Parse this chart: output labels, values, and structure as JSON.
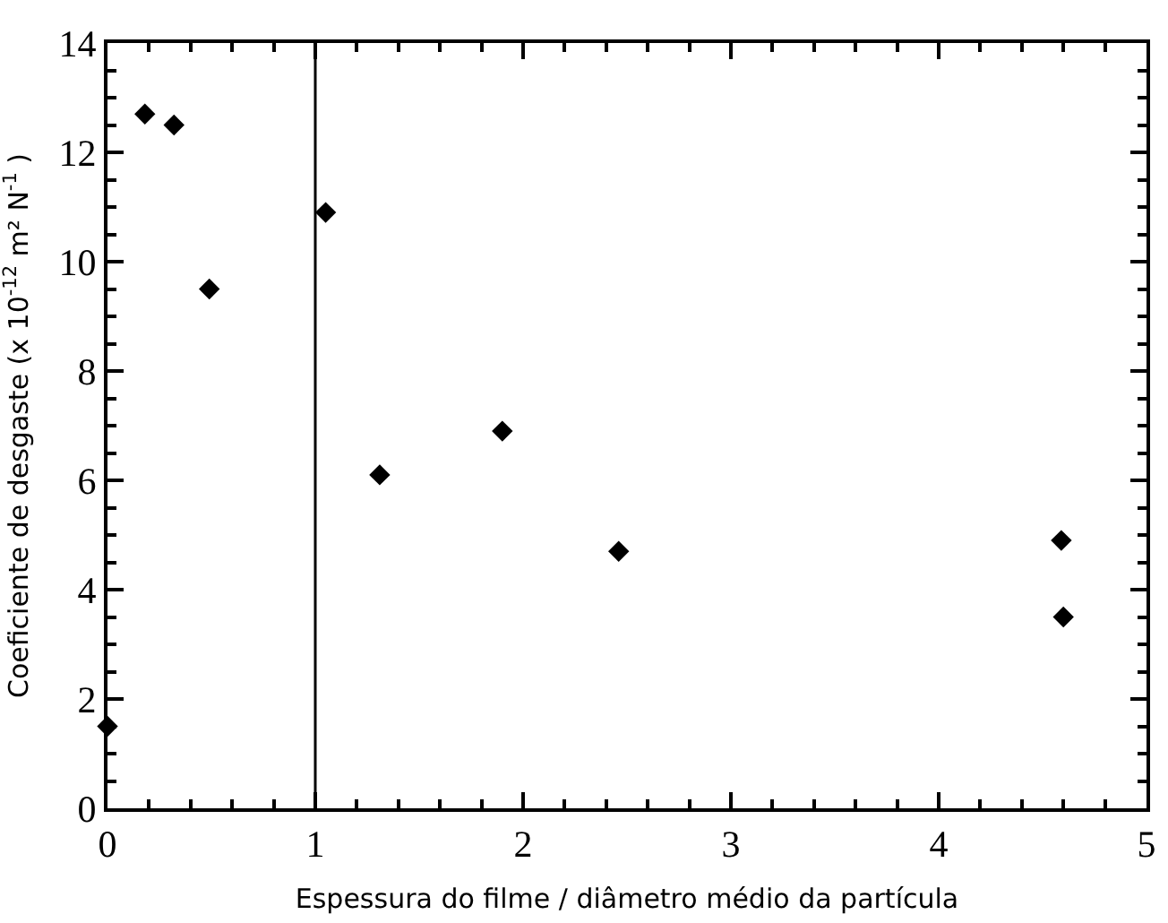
{
  "chart_data": {
    "type": "scatter",
    "xlabel": "Espessura do filme / diâmetro médio da partícula",
    "ylabel": "Coeficiente de desgaste (x 10$^{-12}$ m² N$^{-1}$ )",
    "x": [
      0,
      0.18,
      0.32,
      0.49,
      1.05,
      1.31,
      1.9,
      2.46,
      4.59,
      4.6
    ],
    "series": [
      {
        "color": "#000000",
        "values": [
          1.5,
          12.7,
          12.5,
          9.5,
          10.9,
          6.1,
          6.9,
          4.7,
          4.9,
          3.5
        ]
      }
    ],
    "marker": "diamond",
    "xlim": [
      0,
      5
    ],
    "ylim": [
      0,
      14
    ],
    "xticks": [
      0,
      {
        "value": 0.2,
        "label": null
      },
      {
        "value": 0.4,
        "label": null
      },
      {
        "value": 0.6,
        "label": null
      },
      {
        "value": 0.8,
        "label": null
      },
      1,
      {
        "value": 1.2,
        "label": null
      },
      {
        "value": 1.4,
        "label": null
      },
      {
        "value": 1.6,
        "label": null
      },
      {
        "value": 1.8,
        "label": null
      },
      2,
      {
        "value": 2.2,
        "label": null
      },
      {
        "value": 2.4,
        "label": null
      },
      {
        "value": 2.6,
        "label": null
      },
      {
        "value": 2.8,
        "label": null
      },
      3,
      {
        "value": 3.2,
        "label": null
      },
      {
        "value": 3.4,
        "label": null
      },
      {
        "value": 3.6,
        "label": null
      },
      {
        "value": 3.8,
        "label": null
      },
      4,
      {
        "value": 4.2,
        "label": null
      },
      {
        "value": 4.4,
        "label": null
      },
      {
        "value": 4.6,
        "label": null
      },
      {
        "value": 4.8,
        "label": null
      },
      5
    ],
    "yticks": [
      0,
      {
        "value": 0.5,
        "label": null
      },
      {
        "value": 1,
        "label": null
      },
      {
        "value": 1.5,
        "label": null
      },
      2,
      {
        "value": 2.5,
        "label": null
      },
      {
        "value": 3,
        "label": null
      },
      {
        "value": 3.5,
        "label": null
      },
      4,
      {
        "value": 4.5,
        "label": null
      },
      {
        "value": 5,
        "label": null
      },
      {
        "value": 5.5,
        "label": null
      },
      6,
      {
        "value": 6.5,
        "label": null
      },
      {
        "value": 7,
        "label": null
      },
      {
        "value": 7.5,
        "label": null
      },
      8,
      {
        "value": 8.5,
        "label": null
      },
      {
        "value": 9,
        "label": null
      },
      {
        "value": 9.5,
        "label": null
      },
      10,
      {
        "value": 10.5,
        "label": null
      },
      {
        "value": 11,
        "label": null
      },
      {
        "value": 11.5,
        "label": null
      },
      12,
      {
        "value": 12.5,
        "label": null
      },
      {
        "value": 13,
        "label": null
      },
      {
        "value": 13.5,
        "label": null
      },
      14
    ],
    "ref_lines": [
      {
        "axis": "x",
        "value": 1,
        "color": "#000000"
      }
    ],
    "grid": false
  }
}
